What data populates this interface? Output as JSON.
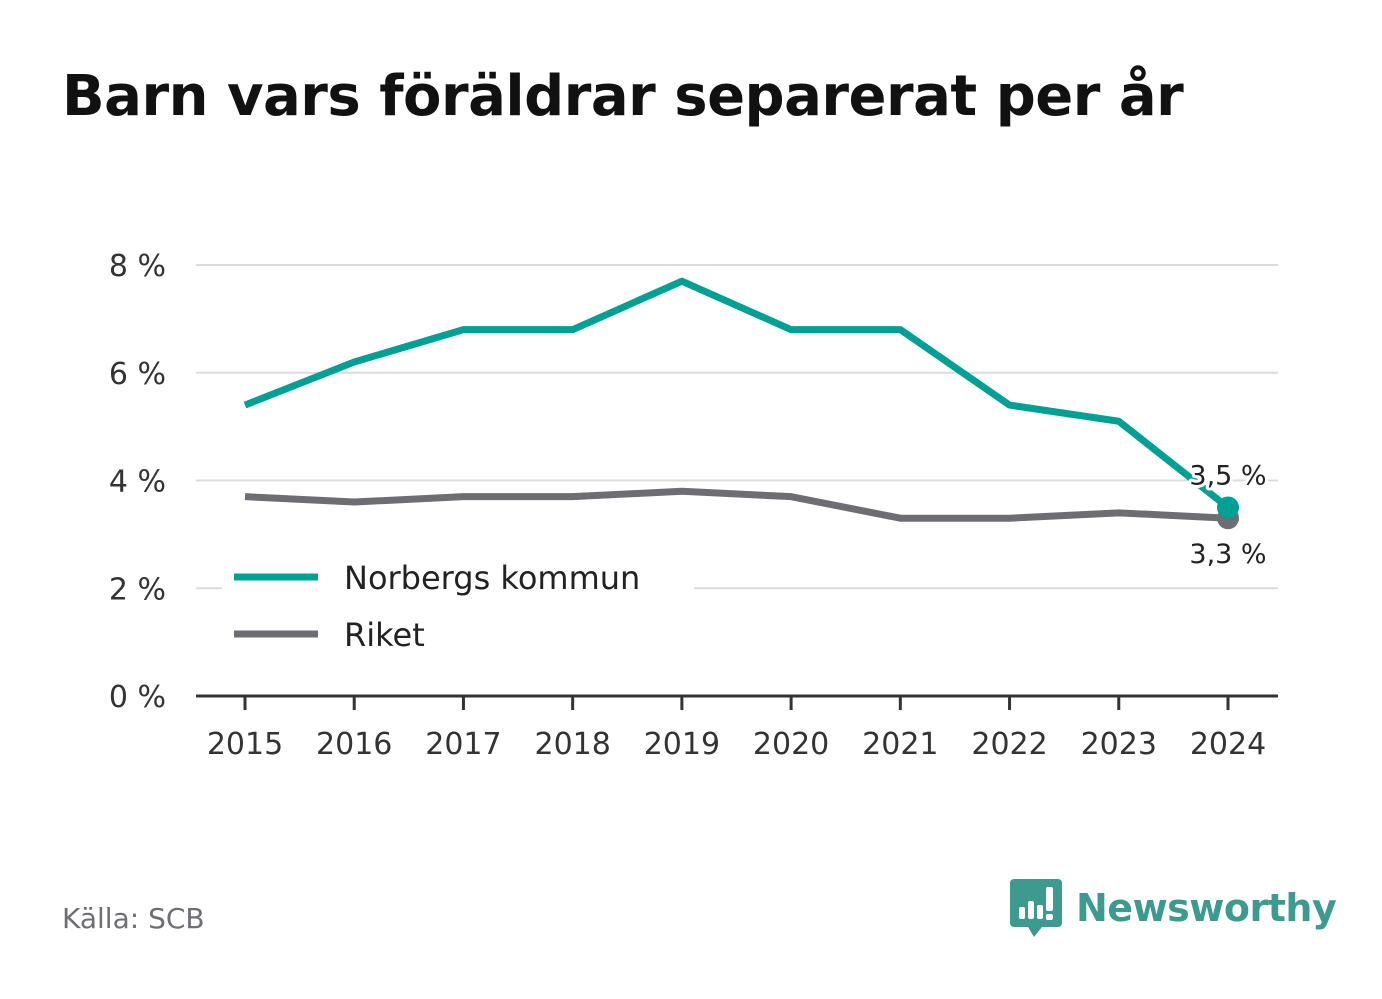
{
  "chart_data": {
    "type": "line",
    "title": "Barn vars föräldrar separerat per år",
    "x": [
      2015,
      2016,
      2017,
      2018,
      2019,
      2020,
      2021,
      2022,
      2023,
      2024
    ],
    "x_tick_labels": [
      "2015",
      "2016",
      "2017",
      "2018",
      "2019",
      "2020",
      "2021",
      "2022",
      "2023",
      "2024"
    ],
    "ylim": [
      0,
      8
    ],
    "y_ticks": [
      0,
      2,
      4,
      6,
      8
    ],
    "y_tick_labels": [
      "0 %",
      "2 %",
      "4 %",
      "6 %",
      "8 %"
    ],
    "grid": true,
    "legend_position": "bottom-left",
    "series": [
      {
        "name": "Norbergs kommun",
        "color": "#00a095",
        "values": [
          5.4,
          6.2,
          6.8,
          6.8,
          7.7,
          6.8,
          6.8,
          5.4,
          5.1,
          3.5
        ],
        "end_label": "3,5 %"
      },
      {
        "name": "Riket",
        "color": "#6e6d74",
        "values": [
          3.7,
          3.6,
          3.7,
          3.7,
          3.8,
          3.7,
          3.3,
          3.3,
          3.4,
          3.3
        ],
        "end_label": "3,3 %"
      }
    ]
  },
  "source": "Källa: SCB",
  "brand": {
    "name": "Newsworthy",
    "icon": "bar-chart-speech-bubble-icon",
    "color": "#3d9a8f"
  }
}
